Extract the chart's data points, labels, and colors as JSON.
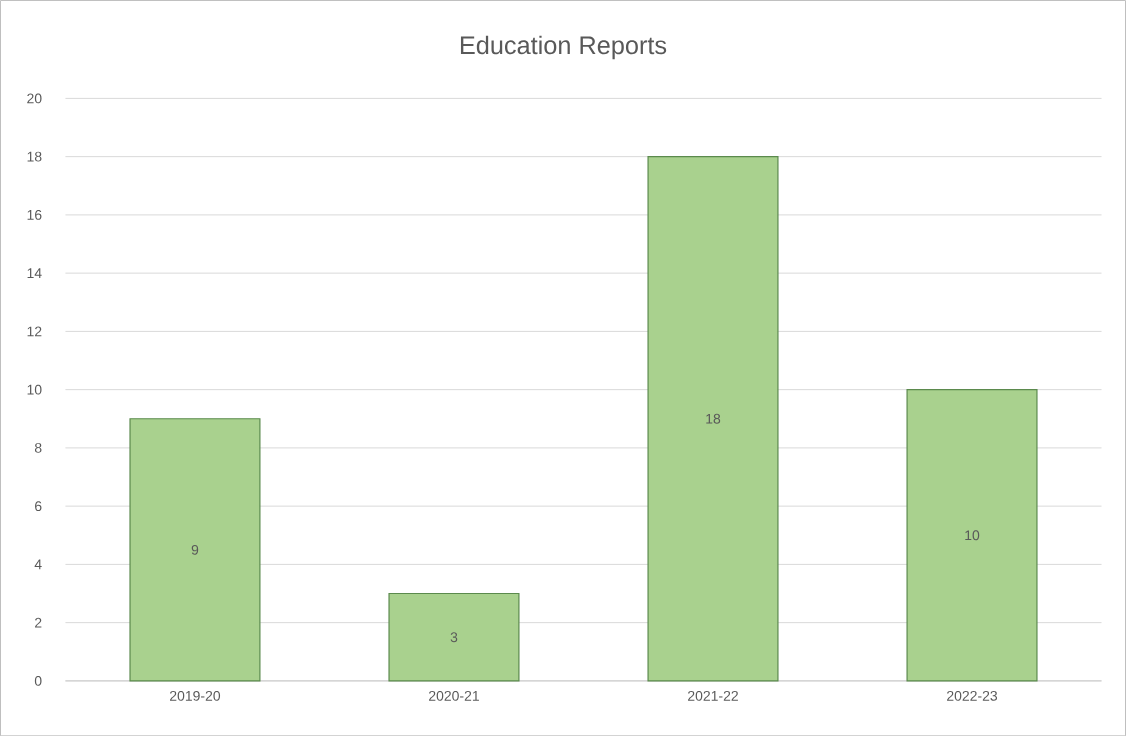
{
  "chart_data": {
    "type": "bar",
    "title": "Education Reports",
    "categories": [
      "2019-20",
      "2020-21",
      "2021-22",
      "2022-23"
    ],
    "values": [
      9,
      3,
      18,
      10
    ],
    "color": "#a9d18e",
    "ylim": [
      0,
      20
    ],
    "yticks": [
      0,
      2,
      4,
      6,
      8,
      10,
      12,
      14,
      16,
      18,
      20
    ],
    "grid": "y",
    "data_labels": true
  }
}
